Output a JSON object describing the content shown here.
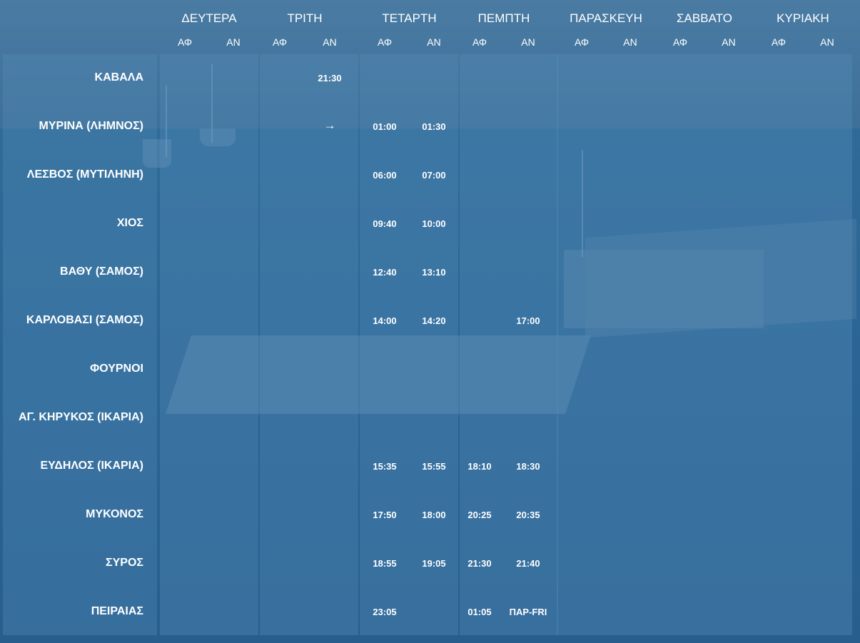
{
  "days": [
    "ΔΕΥΤΕΡΑ",
    "ΤΡΙΤΗ",
    "ΤΕΤΑΡΤΗ",
    "ΠΕΜΠΤΗ",
    "ΠΑΡΑΣΚΕΥΗ",
    "ΣΑΒΒΑΤΟ",
    "ΚΥΡΙΑΚΗ"
  ],
  "sub_labels": {
    "dep": "ΑΦ",
    "arr": "ΑΝ"
  },
  "rows": [
    {
      "port": "ΚΑΒΑΛΑ",
      "times": {
        "ΤΡΙΤΗ.ΑΝ": "21:30"
      }
    },
    {
      "port": "ΜΥΡΙΝΑ (ΛΗΜΝΟΣ)",
      "times": {
        "ΤΡΙΤΗ.ΑΝ": "→",
        "ΤΕΤΑΡΤΗ.ΑΦ": "01:00",
        "ΤΕΤΑΡΤΗ.ΑΝ": "01:30"
      }
    },
    {
      "port": "ΛΕΣΒΟΣ (ΜΥΤΙΛΗΝΗ)",
      "times": {
        "ΤΕΤΑΡΤΗ.ΑΦ": "06:00",
        "ΤΕΤΑΡΤΗ.ΑΝ": "07:00"
      }
    },
    {
      "port": "ΧΙΟΣ",
      "times": {
        "ΤΕΤΑΡΤΗ.ΑΦ": "09:40",
        "ΤΕΤΑΡΤΗ.ΑΝ": "10:00"
      }
    },
    {
      "port": "ΒΑΘΥ (ΣΑΜΟΣ)",
      "times": {
        "ΤΕΤΑΡΤΗ.ΑΦ": "12:40",
        "ΤΕΤΑΡΤΗ.ΑΝ": "13:10"
      }
    },
    {
      "port": "ΚΑΡΛΟΒΑΣΙ (ΣΑΜΟΣ)",
      "times": {
        "ΤΕΤΑΡΤΗ.ΑΦ": "14:00",
        "ΤΕΤΑΡΤΗ.ΑΝ": "14:20",
        "ΠΕΜΠΤΗ.ΑΝ": "17:00"
      }
    },
    {
      "port": "ΦΟΥΡΝΟΙ",
      "times": {}
    },
    {
      "port": "ΑΓ. ΚΗΡΥΚΟΣ (ΙΚΑΡΙΑ)",
      "times": {}
    },
    {
      "port": "ΕΥΔΗΛΟΣ (ΙΚΑΡΙΑ)",
      "times": {
        "ΤΕΤΑΡΤΗ.ΑΦ": "15:35",
        "ΤΕΤΑΡΤΗ.ΑΝ": "15:55",
        "ΠΕΜΠΤΗ.ΑΦ": "18:10",
        "ΠΕΜΠΤΗ.ΑΝ": "18:30"
      }
    },
    {
      "port": "ΜΥΚΟΝΟΣ",
      "times": {
        "ΤΕΤΑΡΤΗ.ΑΦ": "17:50",
        "ΤΕΤΑΡΤΗ.ΑΝ": "18:00",
        "ΠΕΜΠΤΗ.ΑΦ": "20:25",
        "ΠΕΜΠΤΗ.ΑΝ": "20:35"
      }
    },
    {
      "port": "ΣΥΡΟΣ",
      "times": {
        "ΤΕΤΑΡΤΗ.ΑΦ": "18:55",
        "ΤΕΤΑΡΤΗ.ΑΝ": "19:05",
        "ΠΕΜΠΤΗ.ΑΦ": "21:30",
        "ΠΕΜΠΤΗ.ΑΝ": "21:40"
      }
    },
    {
      "port": "ΠΕΙΡΑΙΑΣ",
      "times": {
        "ΤΕΤΑΡΤΗ.ΑΦ": "23:05",
        "ΠΕΜΠΤΗ.ΑΦ": "01:05",
        "ΠΕΜΠΤΗ.ΑΝ": "ΠΑΡ-FRI"
      }
    }
  ]
}
